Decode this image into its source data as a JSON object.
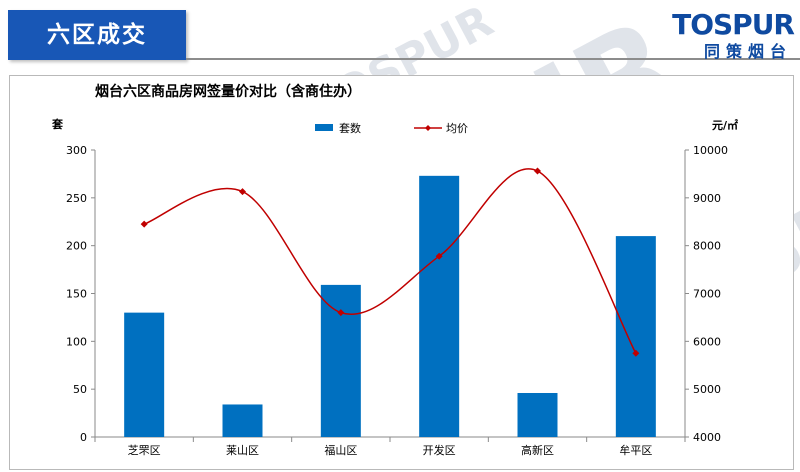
{
  "header": {
    "title": "六区成交"
  },
  "logo": {
    "wordmark": "TOSPUR",
    "cn": "同策烟台"
  },
  "watermark": "TOSPUR",
  "colors": {
    "bar": "#0070c0",
    "line": "#c00000",
    "header": "#1857b6"
  },
  "chart_data": {
    "type": "bar",
    "title": "烟台六区商品房网签量价对比（含商住办）",
    "categories": [
      "芝罘区",
      "莱山区",
      "福山区",
      "开发区",
      "高新区",
      "牟平区"
    ],
    "series": [
      {
        "name": "套数",
        "type": "bar",
        "axis": "left",
        "values": [
          130,
          34,
          159,
          273,
          46,
          210
        ]
      },
      {
        "name": "均价",
        "type": "line",
        "axis": "right",
        "values": [
          8450,
          9130,
          6600,
          7780,
          9560,
          5750
        ]
      }
    ],
    "ylabel_left": "套",
    "ylabel_right": "元/㎡",
    "ylim_left": [
      0,
      300
    ],
    "ylim_right": [
      4000,
      10000
    ],
    "yticks_left": [
      0,
      50,
      100,
      150,
      200,
      250,
      300
    ],
    "yticks_right": [
      4000,
      5000,
      6000,
      7000,
      8000,
      9000,
      10000
    ],
    "grid": false,
    "legend": "top-center"
  }
}
